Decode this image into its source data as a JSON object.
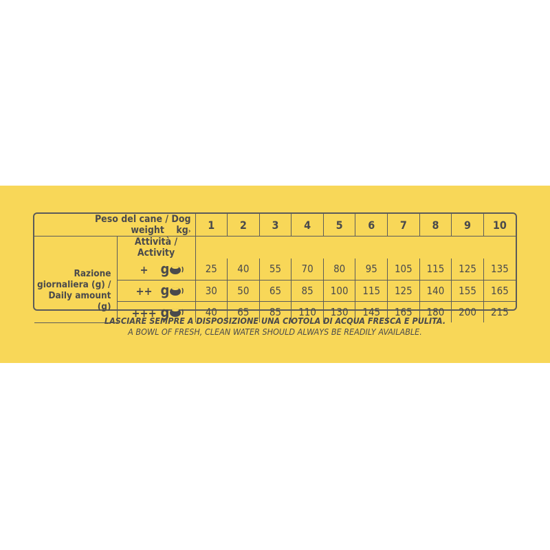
{
  "colors": {
    "background": "#f8d758",
    "text": "#4a4a4c"
  },
  "table": {
    "weight_label": "Peso del cane / Dog weight",
    "weight_unit": "kg",
    "weights": [
      "1",
      "2",
      "3",
      "4",
      "5",
      "6",
      "7",
      "8",
      "9",
      "10"
    ],
    "activity_label": "Attività / Activity",
    "ration_label_1": "Razione",
    "ration_label_2": "giornaliera (g) /",
    "ration_label_3": "Daily amount (g)",
    "rows": [
      {
        "level": "+",
        "unit": "g",
        "icon": "food-bowl-icon",
        "values": [
          "25",
          "40",
          "55",
          "70",
          "80",
          "95",
          "105",
          "115",
          "125",
          "135"
        ]
      },
      {
        "level": "++",
        "unit": "g",
        "icon": "food-bowl-icon",
        "values": [
          "30",
          "50",
          "65",
          "85",
          "100",
          "115",
          "125",
          "140",
          "155",
          "165"
        ]
      },
      {
        "level": "+++",
        "unit": "g",
        "icon": "food-bowl-icon",
        "values": [
          "40",
          "65",
          "85",
          "110",
          "130",
          "145",
          "165",
          "180",
          "200",
          "215"
        ]
      }
    ]
  },
  "note": {
    "italian": "LASCIARE SEMPRE A DISPOSIZIONE UNA CIOTOLA DI ACQUA FRESCA E PULITA.",
    "english": "A BOWL OF FRESH, CLEAN WATER SHOULD ALWAYS BE READILY AVAILABLE."
  }
}
